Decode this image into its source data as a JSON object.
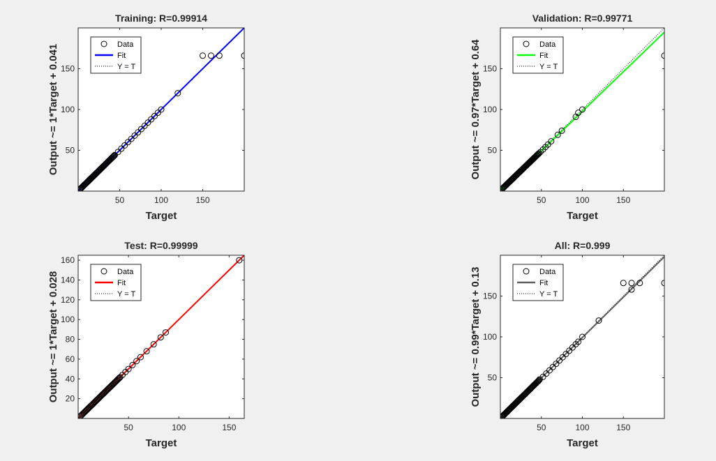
{
  "colors": {
    "background": "#f0f0f0",
    "axes_background": "#ffffff",
    "axes_line": "#262626",
    "marker": "#000000"
  },
  "chart_data": [
    {
      "type": "scatter",
      "title": "Training: R=0.99914",
      "xlabel": "Target",
      "ylabel": "Output ~= 1*Target + 0.041",
      "xlim": [
        0,
        200
      ],
      "ylim": [
        0,
        200
      ],
      "xticks": [
        50,
        100,
        150
      ],
      "yticks": [
        50,
        100,
        150
      ],
      "fit_color": "#0000ff",
      "fit": {
        "slope": 1,
        "intercept": 0.041
      },
      "legend": [
        "Data",
        "Fit",
        "Y = T"
      ],
      "legend_position": "top-left",
      "series": [
        {
          "name": "Data",
          "x": [
            150,
            160,
            170,
            200,
            120,
            100,
            96,
            92,
            88,
            84,
            80,
            76,
            72,
            68,
            64,
            60,
            56,
            52,
            48,
            44
          ],
          "y": [
            166,
            166,
            166,
            166,
            120,
            100,
            96,
            92,
            88,
            84,
            80,
            76,
            72,
            68,
            64,
            60,
            56,
            52,
            48,
            44
          ]
        }
      ],
      "dense_cluster": {
        "from": 2,
        "to": 44
      }
    },
    {
      "type": "scatter",
      "title": "Validation: R=0.99771",
      "xlabel": "Target",
      "ylabel": "Output ~= 0.97*Target + 0.64",
      "xlim": [
        0,
        200
      ],
      "ylim": [
        0,
        200
      ],
      "xticks": [
        50,
        100,
        150
      ],
      "yticks": [
        50,
        100,
        150
      ],
      "fit_color": "#00ff00",
      "fit": {
        "slope": 0.97,
        "intercept": 0.64
      },
      "legend": [
        "Data",
        "Fit",
        "Y = T"
      ],
      "legend_position": "top-left",
      "series": [
        {
          "name": "Data",
          "x": [
            200,
            100,
            95,
            92,
            75,
            70,
            62,
            58,
            55,
            52,
            49
          ],
          "y": [
            166,
            100,
            96,
            91,
            74,
            69,
            61,
            57,
            54,
            51,
            48
          ]
        }
      ],
      "dense_cluster": {
        "from": 2,
        "to": 47
      }
    },
    {
      "type": "scatter",
      "title": "Test: R=0.99999",
      "xlabel": "Target",
      "ylabel": "Output ~= 1*Target + 0.028",
      "xlim": [
        0,
        165
      ],
      "ylim": [
        0,
        165
      ],
      "xticks": [
        50,
        100,
        150
      ],
      "yticks": [
        20,
        40,
        60,
        80,
        100,
        120,
        140,
        160
      ],
      "fit_color": "#ff0000",
      "fit": {
        "slope": 1,
        "intercept": 0.028
      },
      "legend": [
        "Data",
        "Fit",
        "Y = T"
      ],
      "legend_position": "top-left",
      "series": [
        {
          "name": "Data",
          "x": [
            160,
            87,
            82,
            75,
            68,
            62,
            58,
            54,
            50,
            47,
            44
          ],
          "y": [
            160,
            87,
            82,
            75,
            68,
            62,
            58,
            54,
            50,
            47,
            44
          ]
        }
      ],
      "dense_cluster": {
        "from": 2,
        "to": 42
      }
    },
    {
      "type": "scatter",
      "title": "All: R=0.999",
      "xlabel": "Target",
      "ylabel": "Output ~= 0.99*Target + 0.13",
      "xlim": [
        0,
        200
      ],
      "ylim": [
        0,
        200
      ],
      "xticks": [
        50,
        100,
        150
      ],
      "yticks": [
        50,
        100,
        150
      ],
      "fit_color": "#606060",
      "fit": {
        "slope": 0.99,
        "intercept": 0.13
      },
      "legend": [
        "Data",
        "Fit",
        "Y = T"
      ],
      "legend_position": "top-left",
      "series": [
        {
          "name": "Data",
          "x": [
            150,
            160,
            170,
            200,
            160,
            120,
            100,
            95,
            92,
            88,
            84,
            80,
            76,
            72,
            68,
            64,
            60,
            56,
            52,
            48
          ],
          "y": [
            166,
            166,
            166,
            166,
            158,
            120,
            100,
            94,
            91,
            87,
            83,
            79,
            75,
            71,
            67,
            63,
            59,
            55,
            51,
            48
          ]
        }
      ],
      "dense_cluster": {
        "from": 2,
        "to": 47
      }
    }
  ]
}
